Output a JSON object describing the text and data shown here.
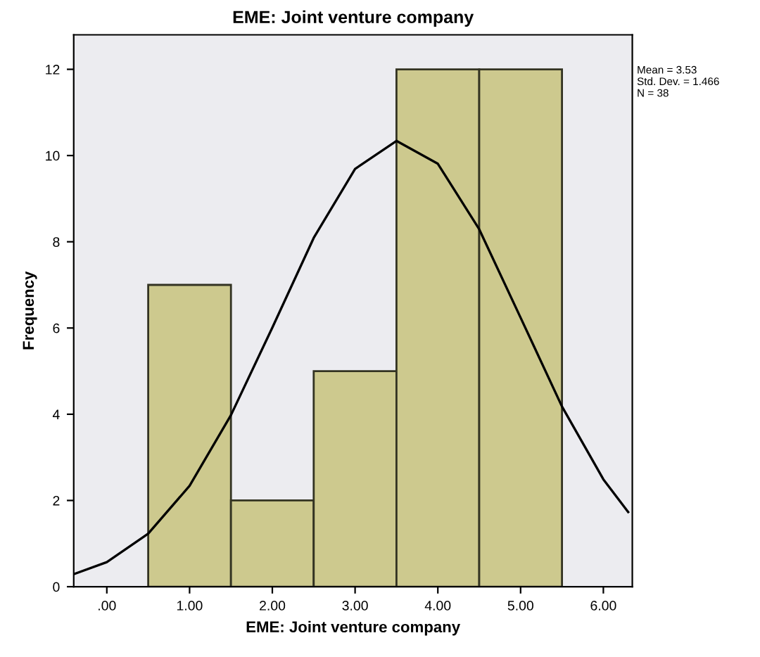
{
  "chart_data": {
    "type": "histogram",
    "title": "EME: Joint venture company",
    "xlabel": "EME: Joint venture company",
    "ylabel": "Frequency",
    "bins": [
      0.5,
      1.5,
      2.5,
      3.5,
      4.5,
      5.5
    ],
    "values": [
      7,
      2,
      5,
      12,
      12
    ],
    "color": "#cdc98e",
    "series": [
      {
        "type": "line",
        "color": "#000000",
        "x": [
          -0.4,
          0,
          0.5,
          1.0,
          1.5,
          2.0,
          2.5,
          3.0,
          3.5,
          4.0,
          4.5,
          5.0,
          5.5,
          6.0,
          6.3
        ],
        "values": [
          0.29,
          0.57,
          1.23,
          2.34,
          3.98,
          6.01,
          8.09,
          9.69,
          10.34,
          9.81,
          8.29,
          6.24,
          4.18,
          2.49,
          1.73
        ]
      }
    ],
    "xlim": [
      -0.4,
      6.35
    ],
    "ylim": [
      0,
      12.8
    ],
    "xticks": [
      {
        "value": 0,
        "label": ".00"
      },
      {
        "value": 1,
        "label": "1.00"
      },
      {
        "value": 2,
        "label": "2.00"
      },
      {
        "value": 3,
        "label": "3.00"
      },
      {
        "value": 4,
        "label": "4.00"
      },
      {
        "value": 5,
        "label": "5.00"
      },
      {
        "value": 6,
        "label": "6.00"
      }
    ],
    "yticks": [
      0,
      2,
      4,
      6,
      8,
      10,
      12
    ],
    "annotations": [
      "Mean = 3.53\nStd. Dev. = 1.466\nN = 38"
    ]
  }
}
